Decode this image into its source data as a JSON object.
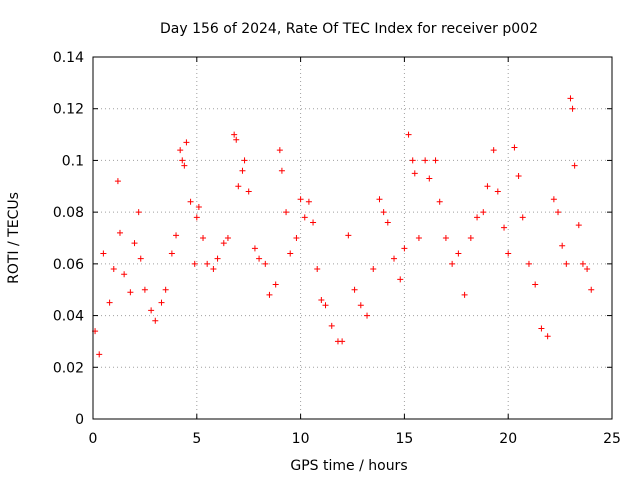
{
  "chart_data": {
    "type": "scatter",
    "title": "Day 156 of 2024, Rate Of TEC Index for receiver p002",
    "xlabel": "GPS time / hours",
    "ylabel": "ROTI / TECUs",
    "xlim": [
      0,
      25
    ],
    "ylim": [
      0,
      0.14
    ],
    "xticks": [
      0,
      5,
      10,
      15,
      20,
      25
    ],
    "xtick_labels": [
      "0",
      "5",
      "10",
      "15",
      "20",
      "25"
    ],
    "yticks": [
      0,
      0.02,
      0.04,
      0.06,
      0.08,
      0.1,
      0.12,
      0.14
    ],
    "ytick_labels": [
      "0",
      "0.02",
      "0.04",
      "0.06",
      "0.08",
      "0.1",
      "0.12",
      "0.14"
    ],
    "grid": true,
    "marker": "+",
    "color": "#ff0000",
    "series": [
      {
        "x": [
          0.1,
          0.3,
          0.5,
          0.8,
          1.0,
          1.2,
          1.3,
          1.5,
          1.8,
          2.0,
          2.2,
          2.3,
          2.5,
          2.8,
          3.0,
          3.3,
          3.5,
          3.8,
          4.0,
          4.2,
          4.3,
          4.4,
          4.5,
          4.7,
          4.9,
          5.0,
          5.1,
          5.3,
          5.5,
          5.8,
          6.0,
          6.3,
          6.5,
          6.8,
          6.9,
          7.0,
          7.2,
          7.3,
          7.5,
          7.8,
          8.0,
          8.3,
          8.5,
          8.8,
          9.0,
          9.1,
          9.3,
          9.5,
          9.8,
          10.0,
          10.2,
          10.4,
          10.6,
          10.8,
          11.0,
          11.2,
          11.5,
          11.8,
          12.0,
          12.3,
          12.6,
          12.9,
          13.2,
          13.5,
          13.8,
          14.0,
          14.2,
          14.5,
          14.8,
          15.0,
          15.2,
          15.4,
          15.5,
          15.7,
          16.0,
          16.2,
          16.5,
          16.7,
          17.0,
          17.3,
          17.6,
          17.9,
          18.2,
          18.5,
          18.8,
          19.0,
          19.3,
          19.5,
          19.8,
          20.0,
          20.3,
          20.5,
          20.7,
          21.0,
          21.3,
          21.6,
          21.9,
          22.2,
          22.4,
          22.6,
          22.8,
          23.0,
          23.1,
          23.2,
          23.4,
          23.6,
          23.8,
          24.0
        ],
        "y": [
          0.034,
          0.025,
          0.064,
          0.045,
          0.058,
          0.092,
          0.072,
          0.056,
          0.049,
          0.068,
          0.08,
          0.062,
          0.05,
          0.042,
          0.038,
          0.045,
          0.05,
          0.064,
          0.071,
          0.104,
          0.1,
          0.098,
          0.107,
          0.084,
          0.06,
          0.078,
          0.082,
          0.07,
          0.06,
          0.058,
          0.062,
          0.068,
          0.07,
          0.11,
          0.108,
          0.09,
          0.096,
          0.1,
          0.088,
          0.066,
          0.062,
          0.06,
          0.048,
          0.052,
          0.104,
          0.096,
          0.08,
          0.064,
          0.07,
          0.085,
          0.078,
          0.084,
          0.076,
          0.058,
          0.046,
          0.044,
          0.036,
          0.03,
          0.03,
          0.071,
          0.05,
          0.044,
          0.04,
          0.058,
          0.085,
          0.08,
          0.076,
          0.062,
          0.054,
          0.066,
          0.11,
          0.1,
          0.095,
          0.07,
          0.1,
          0.093,
          0.1,
          0.084,
          0.07,
          0.06,
          0.064,
          0.048,
          0.07,
          0.078,
          0.08,
          0.09,
          0.104,
          0.088,
          0.074,
          0.064,
          0.105,
          0.094,
          0.078,
          0.06,
          0.052,
          0.035,
          0.032,
          0.085,
          0.08,
          0.067,
          0.06,
          0.124,
          0.12,
          0.098,
          0.075,
          0.06,
          0.058,
          0.05
        ]
      }
    ]
  }
}
